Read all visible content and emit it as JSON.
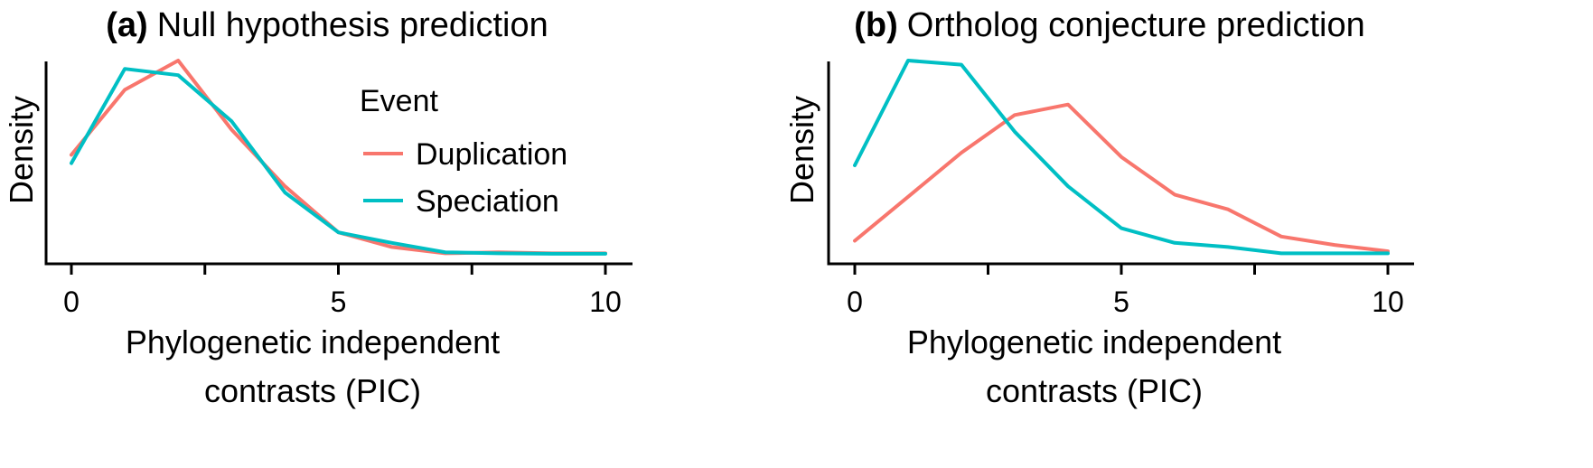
{
  "chart_data": [
    {
      "type": "line",
      "title_prefix": "(a)",
      "title": "Null hypothesis prediction",
      "xlabel_lines": [
        "Phylogenetic independent",
        "contrasts (PIC)"
      ],
      "ylabel": "Density",
      "xlim": [
        0,
        10
      ],
      "ylim": [
        0,
        1
      ],
      "xticks": [
        0,
        5,
        10
      ],
      "minor_xticks": [
        2.5,
        7.5
      ],
      "legend": {
        "title": "Event",
        "placement": "top-right"
      },
      "series": [
        {
          "name": "Duplication",
          "color": "#F8766D",
          "x": [
            0,
            1,
            2,
            3,
            4,
            5,
            6,
            7,
            8,
            9,
            10
          ],
          "y": [
            0.52,
            0.83,
            0.97,
            0.64,
            0.37,
            0.15,
            0.08,
            0.05,
            0.055,
            0.05,
            0.05
          ]
        },
        {
          "name": "Speciation",
          "color": "#00BFC4",
          "x": [
            0,
            1,
            2,
            3,
            4,
            5,
            6,
            7,
            8,
            9,
            10
          ],
          "y": [
            0.48,
            0.93,
            0.9,
            0.68,
            0.34,
            0.15,
            0.1,
            0.055,
            0.05,
            0.048,
            0.048
          ]
        }
      ]
    },
    {
      "type": "line",
      "title_prefix": "(b)",
      "title": "Ortholog conjecture prediction",
      "xlabel_lines": [
        "Phylogenetic independent",
        "contrasts (PIC)"
      ],
      "ylabel": "Density",
      "xlim": [
        0,
        10
      ],
      "ylim": [
        0,
        1
      ],
      "xticks": [
        0,
        5,
        10
      ],
      "minor_xticks": [
        2.5,
        7.5
      ],
      "series": [
        {
          "name": "Duplication",
          "color": "#F8766D",
          "x": [
            0,
            1,
            2,
            3,
            4,
            5,
            6,
            7,
            8,
            9,
            10
          ],
          "y": [
            0.11,
            0.32,
            0.53,
            0.71,
            0.76,
            0.51,
            0.33,
            0.26,
            0.13,
            0.09,
            0.06
          ]
        },
        {
          "name": "Speciation",
          "color": "#00BFC4",
          "x": [
            0,
            1,
            2,
            3,
            4,
            5,
            6,
            7,
            8,
            9,
            10
          ],
          "y": [
            0.47,
            0.97,
            0.95,
            0.63,
            0.37,
            0.17,
            0.1,
            0.08,
            0.05,
            0.05,
            0.05
          ]
        }
      ]
    }
  ]
}
